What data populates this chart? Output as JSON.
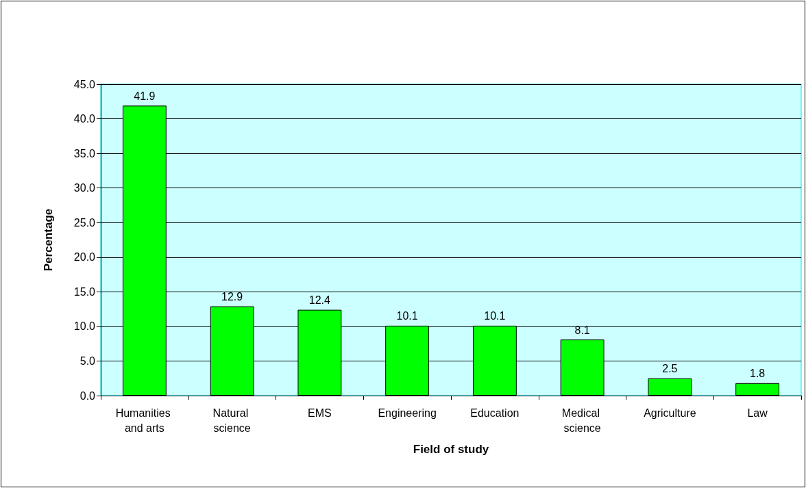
{
  "chart_data": {
    "type": "bar",
    "xlabel": "Field of study",
    "ylabel": "Percentage",
    "categories": [
      "Humanities and arts",
      "Natural science",
      "EMS",
      "Engineering",
      "Education",
      "Medical science",
      "Agriculture",
      "Law"
    ],
    "values": [
      41.9,
      12.9,
      12.4,
      10.1,
      10.1,
      8.1,
      2.5,
      1.8
    ],
    "color": "#00ff00",
    "ylim": [
      0,
      45
    ],
    "yticks": [
      {
        "value": 0,
        "label": "0.0"
      },
      {
        "value": 5,
        "label": "5.0"
      },
      {
        "value": 10,
        "label": "10.0"
      },
      {
        "value": 15,
        "label": "15.0"
      },
      {
        "value": 20,
        "label": "20.0"
      },
      {
        "value": 25,
        "label": "25.0"
      },
      {
        "value": 30,
        "label": "30.0"
      },
      {
        "value": 35,
        "label": "35.0"
      },
      {
        "value": 40,
        "label": "40.0"
      },
      {
        "value": 45,
        "label": "45.0"
      }
    ],
    "grid": true,
    "data_labels": true
  }
}
